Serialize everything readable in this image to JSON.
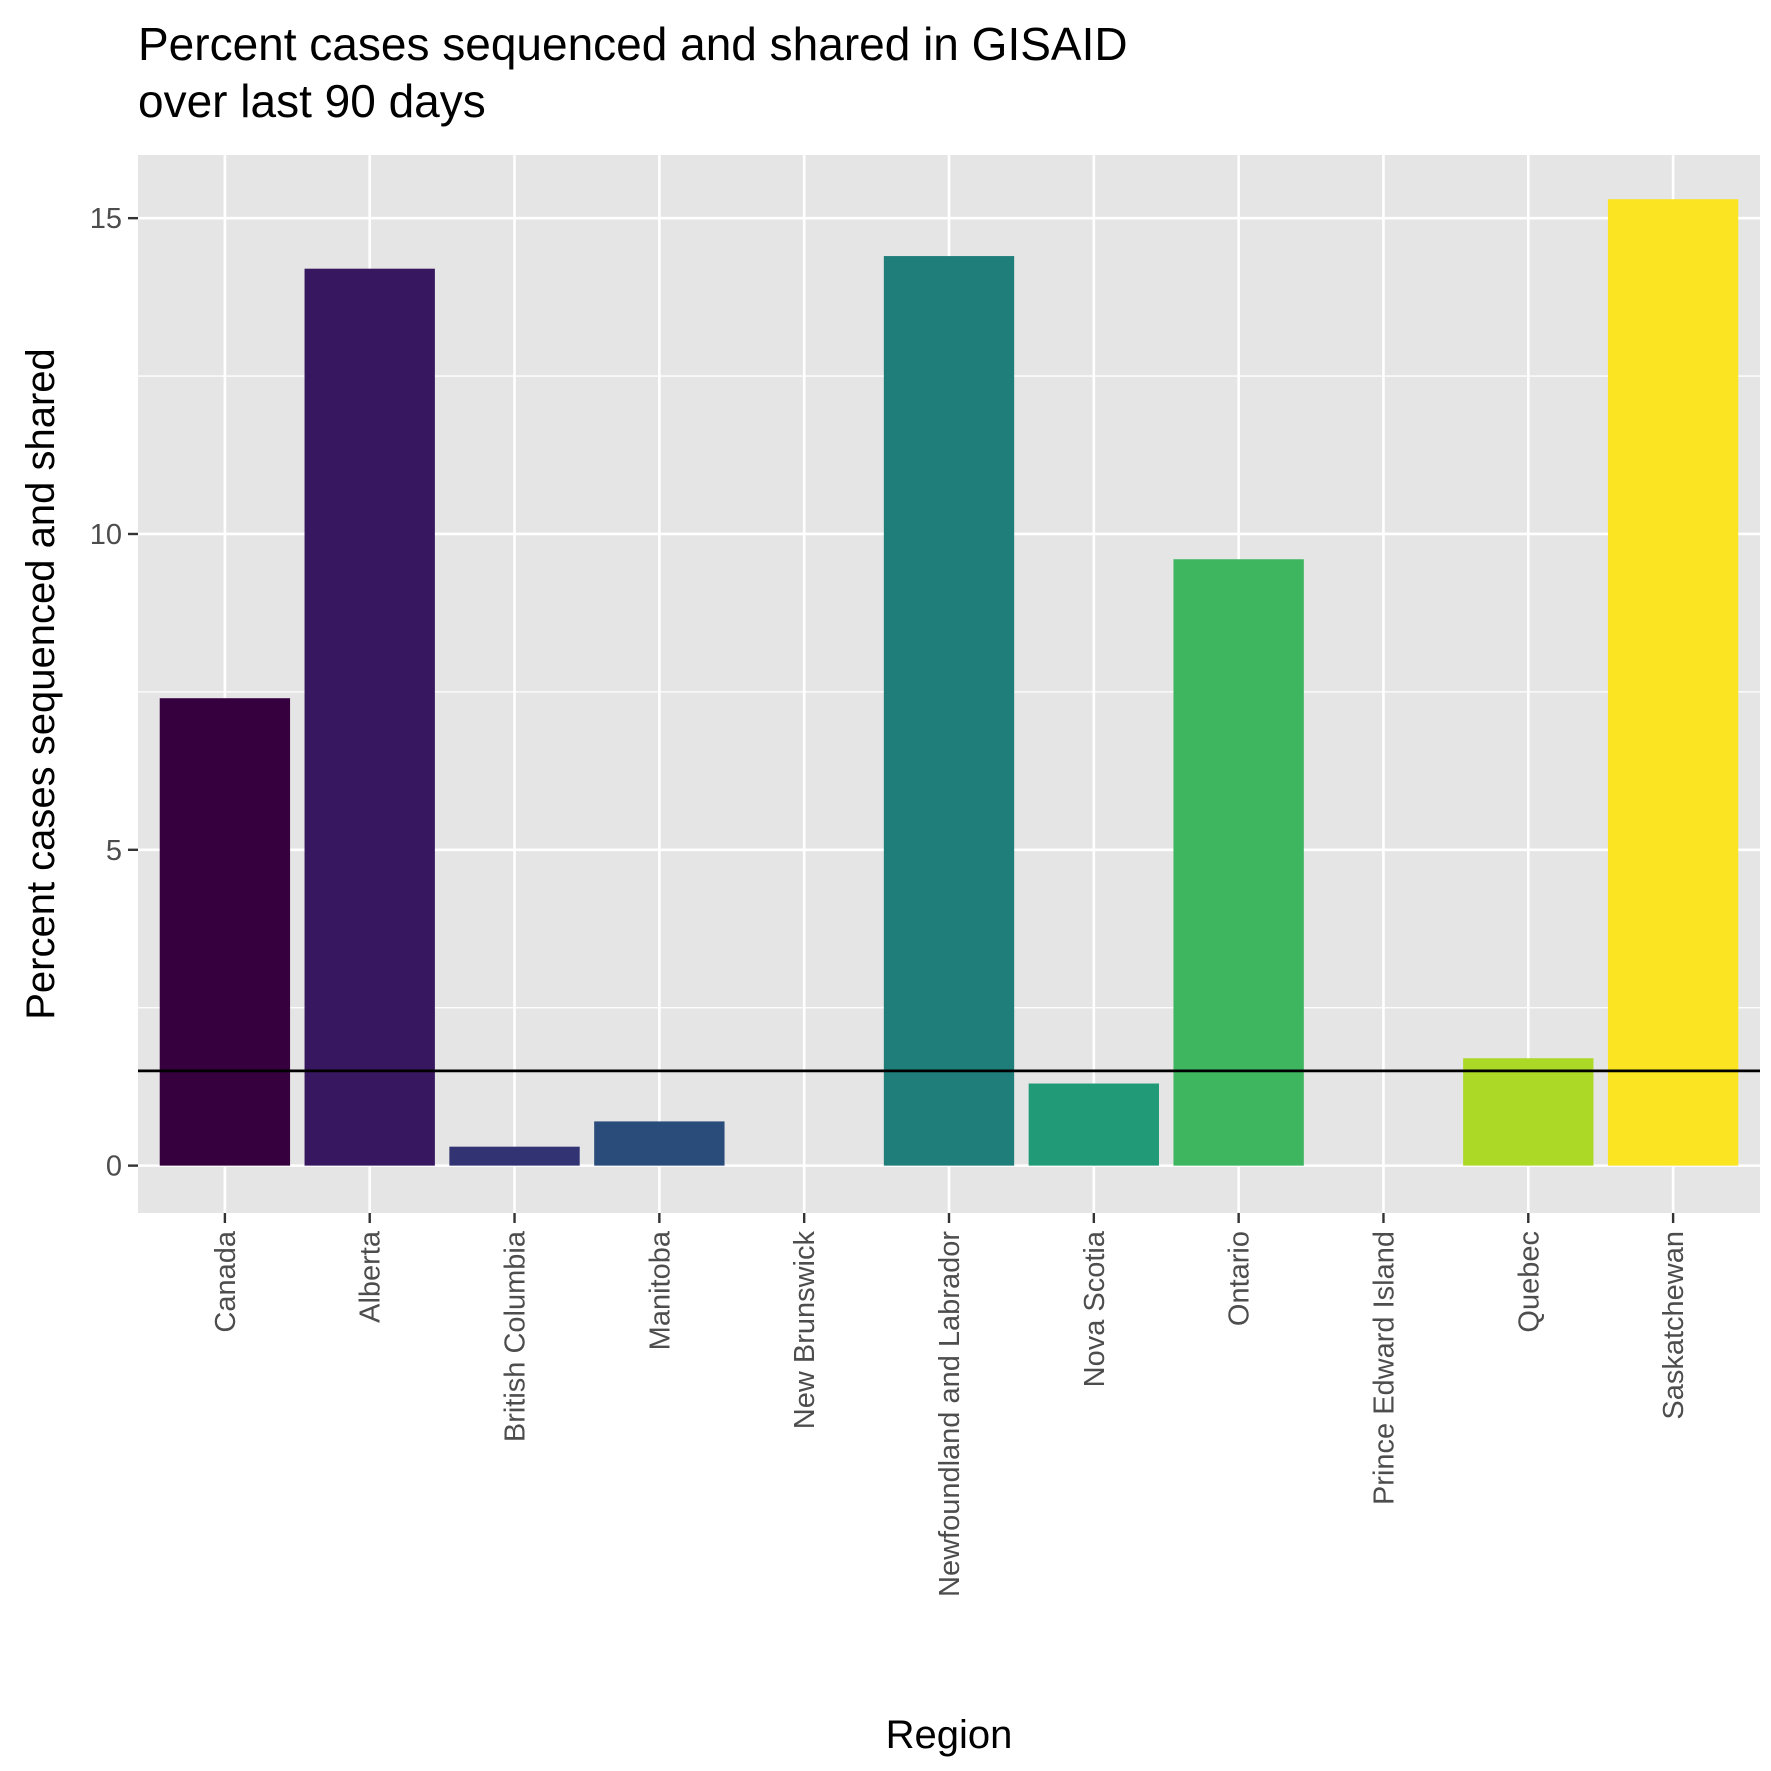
{
  "title_line1": "Percent cases sequenced and shared in GISAID",
  "title_line2": "over last 90 days",
  "chart_data": {
    "type": "bar",
    "title": "Percent cases sequenced and shared in GISAID over last 90 days",
    "xlabel": "Region",
    "ylabel": "Percent cases sequenced and shared",
    "categories": [
      "Canada",
      "Alberta",
      "British Columbia",
      "Manitoba",
      "New Brunswick",
      "Newfoundland and Labrador",
      "Nova Scotia",
      "Ontario",
      "Prince Edward Island",
      "Quebec",
      "Saskatchewan"
    ],
    "values": [
      7.4,
      14.2,
      0.3,
      0.7,
      0,
      14.4,
      1.3,
      9.6,
      0,
      1.7,
      15.3
    ],
    "colors": [
      "#36003f",
      "#381761",
      "#323372",
      "#2a4c7a",
      "#24627f",
      "#1f7e7a",
      "#219b77",
      "#3db65f",
      "#7fcb44",
      "#acd926",
      "#fbe421"
    ],
    "reference_line": 1.5,
    "ylim": [
      -0.75,
      16.0
    ],
    "yticks": [
      0,
      5,
      10,
      15
    ],
    "ytick_labels": [
      "0",
      "5",
      "10",
      "15"
    ],
    "grid": true,
    "legend": "none",
    "panel_background": "#e5e5e5",
    "grid_color": "#ffffff",
    "reference_line_color": "#000000"
  }
}
